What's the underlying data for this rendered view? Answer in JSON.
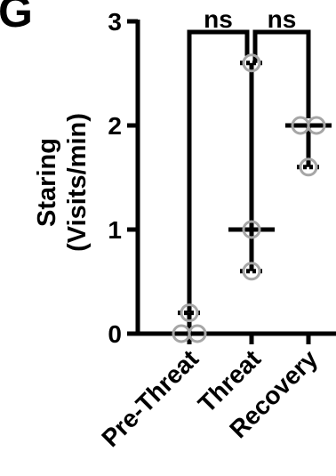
{
  "panel_label": "G",
  "chart_data": {
    "type": "scatter",
    "title": "",
    "xlabel": "",
    "ylabel_lines": [
      "Staring",
      "(Visits/min)"
    ],
    "ylim": [
      0,
      3
    ],
    "yticks": [
      "0",
      "1",
      "2",
      "3"
    ],
    "categories": [
      "Pre-Threat",
      "Threat",
      "Recovery"
    ],
    "groups": [
      {
        "category": "Pre-Threat",
        "points": [
          0.0,
          0.0,
          0.2
        ],
        "median": 0.0,
        "range": [
          0.0,
          0.2
        ]
      },
      {
        "category": "Threat",
        "points": [
          0.6,
          1.0,
          2.6
        ],
        "median": 1.0,
        "range": [
          0.6,
          2.6
        ]
      },
      {
        "category": "Recovery",
        "points": [
          1.6,
          2.0,
          2.0
        ],
        "median": 2.0,
        "range": [
          1.6,
          2.0
        ]
      }
    ],
    "comparisons": [
      {
        "from": "Pre-Threat",
        "to": "Threat",
        "label": "ns"
      },
      {
        "from": "Threat",
        "to": "Recovery",
        "label": "ns"
      }
    ],
    "colors": {
      "marker_stroke": "#a6a6a6",
      "line": "#000000"
    }
  }
}
